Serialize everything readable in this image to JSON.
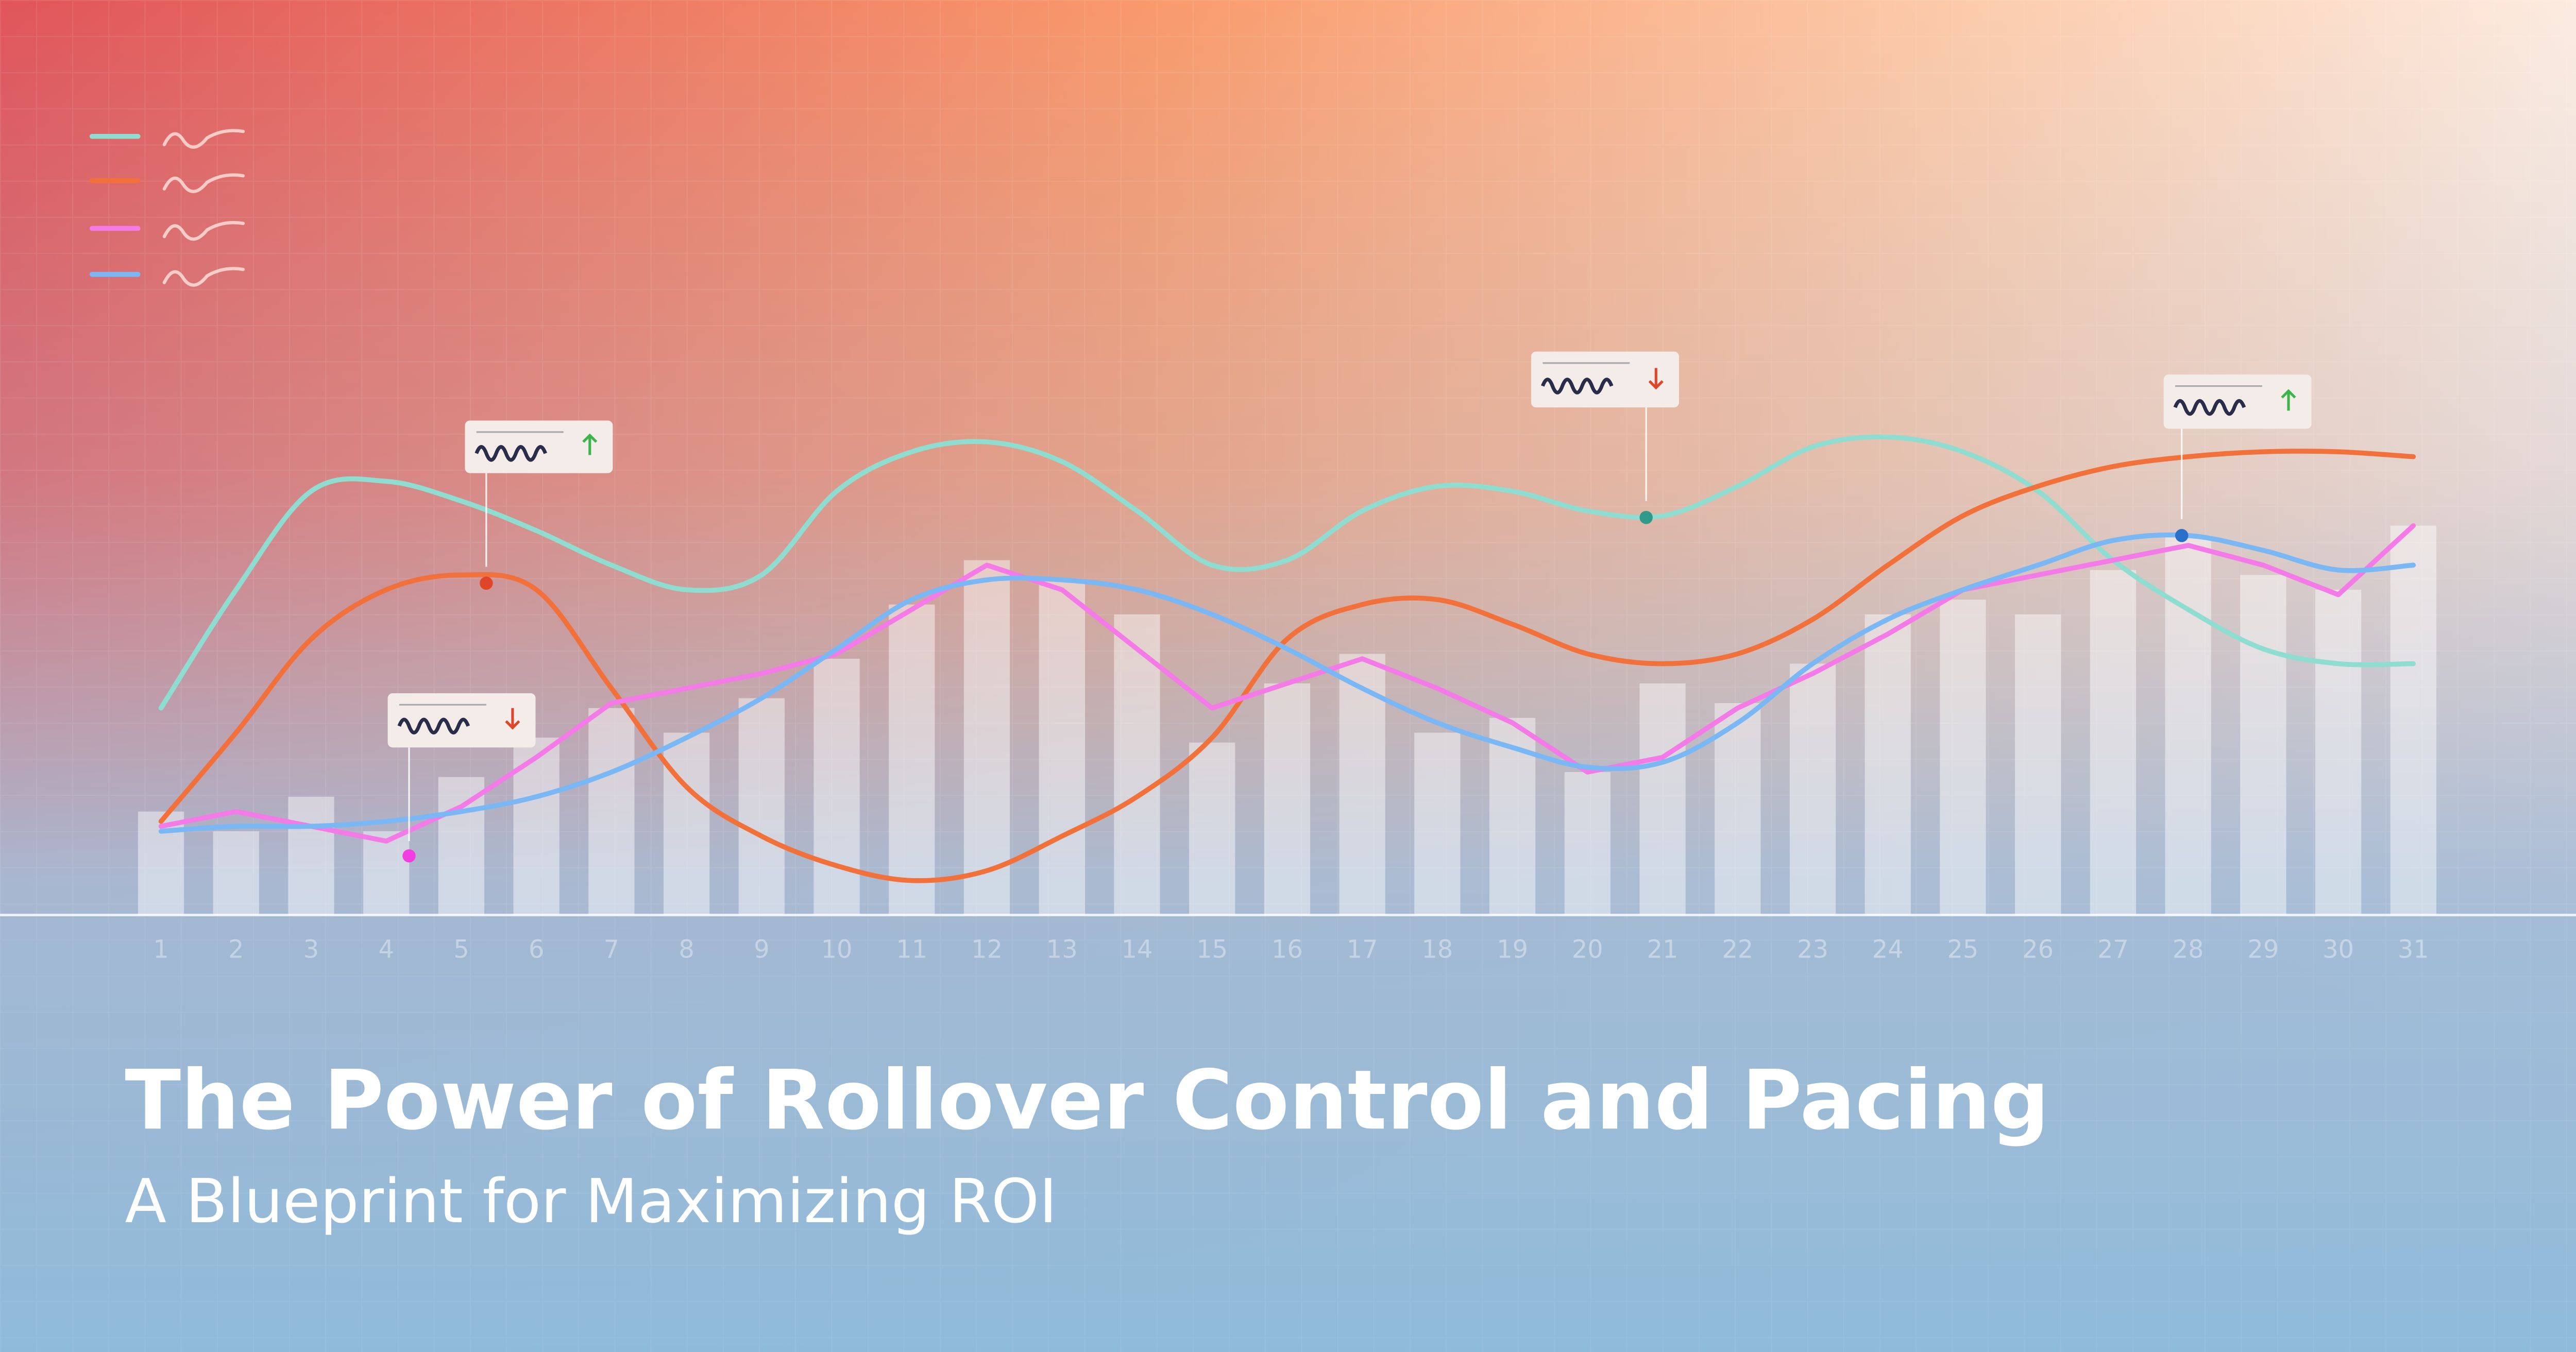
{
  "chart_data": {
    "type": "bar-line",
    "title": "The Power of Rollover Control and Pacing",
    "subtitle": "A Blueprint for Maximizing ROI",
    "categories": [
      "1",
      "2",
      "3",
      "4",
      "5",
      "6",
      "7",
      "8",
      "9",
      "10",
      "11",
      "12",
      "13",
      "14",
      "15",
      "16",
      "17",
      "18",
      "19",
      "20",
      "21",
      "22",
      "23",
      "24",
      "25",
      "26",
      "27",
      "28",
      "29",
      "30",
      "31"
    ],
    "ylim": [
      0,
      100
    ],
    "bars": {
      "color": "#ffffff",
      "values": [
        21,
        17,
        24,
        17,
        28,
        36,
        42,
        37,
        44,
        52,
        63,
        72,
        68,
        61,
        35,
        47,
        53,
        37,
        40,
        29,
        47,
        43,
        51,
        61,
        64,
        61,
        70,
        77,
        69,
        66,
        79
      ]
    },
    "series": [
      {
        "color": "#8fdcd0",
        "smooth": true,
        "values": [
          42,
          66,
          86,
          88,
          84,
          78,
          71,
          66,
          69,
          86,
          94,
          96,
          92,
          82,
          71,
          72,
          82,
          87,
          86,
          82,
          81,
          87,
          95,
          97,
          94,
          86,
          72,
          62,
          54,
          51,
          51
        ]
      },
      {
        "color": "#f2703a",
        "smooth": true,
        "values": [
          19,
          37,
          56,
          66,
          69,
          66,
          46,
          26,
          16,
          10,
          7,
          9,
          16,
          24,
          36,
          56,
          63,
          64,
          59,
          53,
          51,
          53,
          60,
          71,
          81,
          87,
          91,
          93,
          94,
          94,
          93
        ]
      },
      {
        "color": "#f47ae8",
        "smooth": false,
        "values": [
          18,
          21,
          18,
          15,
          22,
          32,
          43,
          46,
          49,
          53,
          62,
          71,
          66,
          54,
          42,
          47,
          52,
          46,
          39,
          29,
          32,
          42,
          49,
          57,
          66,
          69,
          72,
          75,
          71,
          65,
          79
        ]
      },
      {
        "color": "#7ab8f5",
        "smooth": true,
        "values": [
          17,
          18,
          18,
          19,
          21,
          24,
          29,
          36,
          44,
          54,
          64,
          68,
          68,
          66,
          61,
          54,
          46,
          39,
          34,
          30,
          31,
          39,
          51,
          60,
          66,
          71,
          76,
          77,
          74,
          70,
          71
        ]
      }
    ]
  }
}
